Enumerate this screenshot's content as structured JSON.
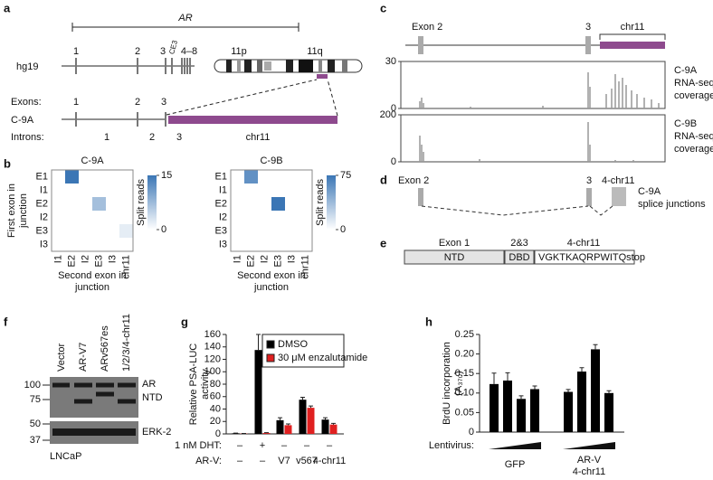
{
  "panel_labels": [
    "a",
    "b",
    "c",
    "d",
    "e",
    "f",
    "g",
    "h"
  ],
  "panel_a": {
    "gene": "AR",
    "genome": "hg19",
    "hg19_exons": [
      "1",
      "2",
      "3",
      "CE3",
      "4–8"
    ],
    "arms": [
      "11p",
      "11q"
    ],
    "exons_label": "Exons:",
    "exons": [
      "1",
      "2",
      "3"
    ],
    "isoform": "C-9A",
    "introns_label": "Introns:",
    "introns": [
      "1",
      "2",
      "3",
      "chr11"
    ]
  },
  "panel_c": {
    "exon_labels": [
      "Exon 2",
      "3",
      "chr11"
    ],
    "tracks": [
      {
        "lines": [
          "C-9A",
          "RNA-seq",
          "coverage"
        ],
        "ylim": [
          0,
          30
        ],
        "yticks": [
          0,
          30
        ]
      },
      {
        "lines": [
          "C-9B",
          "RNA-seq",
          "coverage"
        ],
        "ylim": [
          0,
          200
        ],
        "yticks": [
          0,
          200
        ]
      }
    ]
  },
  "panel_d": {
    "exon_labels": [
      "Exon 2",
      "3",
      "4-chr11"
    ],
    "caption": [
      "C-9A",
      "splice junctions"
    ]
  },
  "panel_e": {
    "headers": [
      "Exon 1",
      "2&3",
      "4-chr11"
    ],
    "domains": [
      "NTD",
      "DBD",
      "VGKTKAQRPWITQstop"
    ]
  },
  "panel_f": {
    "lanes": [
      "Vector",
      "AR-V7",
      "ARv567es",
      "1/2/3/4-chr11"
    ],
    "markers": [
      100,
      75,
      50,
      37
    ],
    "bands": [
      "AR",
      "NTD",
      "ERK-2"
    ],
    "cell_line": "LNCaP"
  },
  "chart_data": [
    {
      "type": "heatmap",
      "title": "C-9A",
      "rows": [
        "E1",
        "I1",
        "E2",
        "I2",
        "E3",
        "I3"
      ],
      "columns": [
        "I1",
        "E2",
        "I2",
        "E3",
        "I3",
        "chr11"
      ],
      "values": [
        [
          0,
          15,
          0,
          0,
          0,
          0
        ],
        [
          0,
          0,
          0,
          0,
          0,
          0
        ],
        [
          0,
          0,
          0,
          7,
          0,
          0
        ],
        [
          0,
          0,
          0,
          0,
          0,
          0
        ],
        [
          0,
          0,
          0,
          0,
          0,
          2
        ],
        [
          0,
          0,
          0,
          0,
          0,
          0
        ]
      ],
      "zlim": [
        0,
        15
      ],
      "zticks": [
        0,
        15
      ],
      "colorbar_label": "Split reads",
      "color": "#3b76b5",
      "ylabel": [
        "First exon in",
        "junction"
      ],
      "xlabel": [
        "Second exon in",
        "junction"
      ]
    },
    {
      "type": "heatmap",
      "title": "C-9B",
      "rows": [
        "E1",
        "I1",
        "E2",
        "I2",
        "E3",
        "I3"
      ],
      "columns": [
        "I1",
        "E2",
        "I2",
        "E3",
        "I3",
        "chr11"
      ],
      "values": [
        [
          0,
          60,
          0,
          0,
          0,
          0
        ],
        [
          0,
          0,
          0,
          0,
          0,
          0
        ],
        [
          0,
          0,
          0,
          75,
          0,
          0
        ],
        [
          0,
          0,
          0,
          0,
          0,
          0
        ],
        [
          0,
          0,
          0,
          0,
          0,
          0
        ],
        [
          0,
          0,
          0,
          0,
          0,
          0
        ]
      ],
      "zlim": [
        0,
        75
      ],
      "zticks": [
        0,
        75
      ],
      "colorbar_label": "Split reads",
      "color": "#3b76b5",
      "xlabel": [
        "Second exon in",
        "junction"
      ]
    },
    {
      "type": "bar",
      "ylabel": [
        "Relative PSA-LUC",
        "activity"
      ],
      "ylim": [
        0,
        160
      ],
      "yticks": [
        0,
        20,
        40,
        60,
        80,
        100,
        120,
        140,
        160
      ],
      "row_labels": [
        "1 nM DHT:",
        "AR-V:"
      ],
      "categories": [
        "–",
        "+",
        "–",
        "–",
        "–"
      ],
      "categories_2": [
        "–",
        "–",
        "V7",
        "v567",
        "4-chr11"
      ],
      "series": [
        {
          "name": "DMSO",
          "color": "#000000",
          "values": [
            1,
            135,
            22,
            55,
            23
          ],
          "errors": [
            0.3,
            25,
            4,
            4,
            3
          ]
        },
        {
          "name": "30 μM enzalutamide",
          "color": "#e02020",
          "values": [
            0.5,
            1.5,
            14,
            42,
            15
          ],
          "errors": [
            0.2,
            0.5,
            2,
            3,
            2
          ]
        }
      ],
      "legend": "upper right"
    },
    {
      "type": "bar",
      "ylabel": [
        "BrdU incorporation",
        "(A₃₇₀)"
      ],
      "ylim": [
        0,
        0.25
      ],
      "yticks": [
        0,
        0.05,
        {
          "value": 0.1,
          "label": "0.10"
        },
        0.15,
        {
          "value": 0.2,
          "label": "0.20"
        },
        0.25
      ],
      "row_label": "Lentivirus:",
      "color": "#000000",
      "groups": [
        {
          "name": [
            "GFP"
          ],
          "values": [
            0.123,
            0.132,
            0.085,
            0.11
          ],
          "errors": [
            0.028,
            0.02,
            0.008,
            0.008
          ]
        },
        {
          "name": [
            "AR-V",
            "4-chr11"
          ],
          "values": [
            0.103,
            0.155,
            0.212,
            0.1
          ],
          "errors": [
            0.006,
            0.01,
            0.012,
            0.006
          ]
        }
      ]
    }
  ]
}
